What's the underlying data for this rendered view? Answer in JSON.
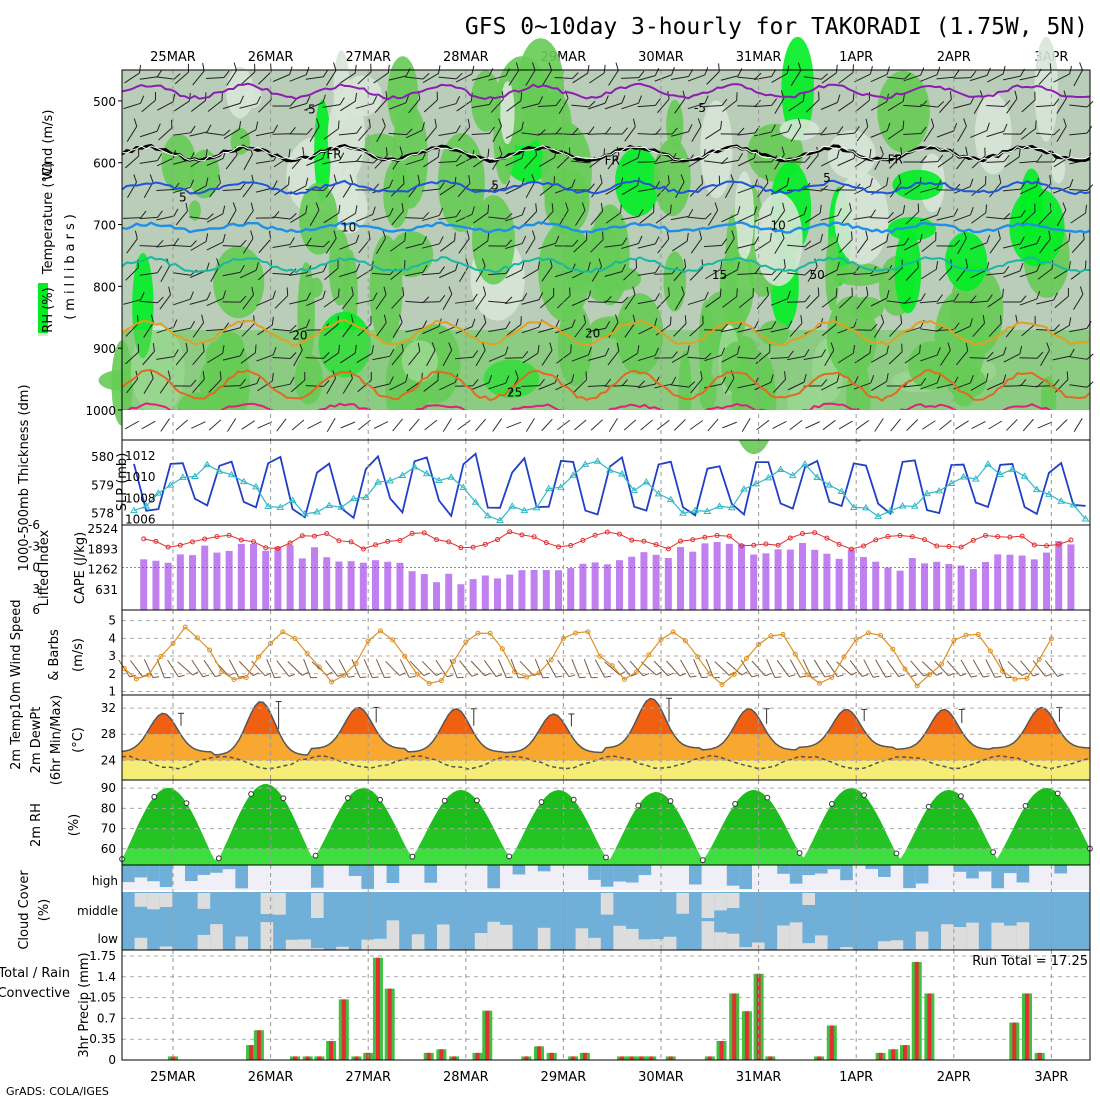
{
  "title": "GFS 0~10day 3-hourly for TAKORADI (1.75W, 5N)",
  "credit": "GrADS: COLA/IGES",
  "dates": [
    "25MAR",
    "26MAR",
    "27MAR",
    "28MAR",
    "29MAR",
    "30MAR",
    "31MAR",
    "1APR",
    "2APR",
    "3APR"
  ],
  "colors": {
    "rh_light": "#d8e6d8",
    "rh_mid": "#b9cdb9",
    "rh_green": "#66cc55",
    "rh_bright": "#00ee22",
    "t_purple": "#8a1fb0",
    "t_fr": "#000000",
    "t_blue5": "#1f55d8",
    "t_blue10": "#1e8fe8",
    "t_teal15": "#18b8a0",
    "t_orange20": "#e0a020",
    "t_orange25": "#e06a20",
    "t_magenta": "#e0207a",
    "slp": "#1f3fc8",
    "thick": "#30b8c8",
    "li": "#e03030",
    "cape": "#c080f0",
    "wind": "#e09020",
    "barb": "#7a5a40",
    "temp_hot": "#f06010",
    "temp_warm": "#f8a830",
    "temp_dew": "#f4f480",
    "rh_dark": "#00a000",
    "rh_base": "#40dd40",
    "cloud": "#70b0d8",
    "cloud_bg": "#f0eef6",
    "cloud_gap": "#dddddd",
    "precip_total": "#40c040",
    "precip_conv": "#e03030"
  },
  "panels": {
    "upper": {
      "ylabel_wind": "Wind (m/s)",
      "ylabel_temp": "Temperature (°C)",
      "ylabel_rh": "RH (%)",
      "ylabel_unit": "(millibars)"
    },
    "slp": {
      "ylabel_thick": "1000-500mb Thickness (dm)",
      "ylabel_slp": "SLP (mb)"
    },
    "cape": {
      "ylabel_li": "Lifted Index",
      "ylabel_cape": "CAPE (J/kg)"
    },
    "wind10": {
      "ylabel_speed": "10m Wind Speed",
      "ylabel_barbs": "& Barbs",
      "ylabel_unit": "(m/s)"
    },
    "temp": {
      "ylabel_a": "2m Temp",
      "ylabel_b": "2m DewPt",
      "ylabel_c": "(6hr Min/Max)",
      "ylabel_unit": "(°C)"
    },
    "rh2m": {
      "ylabel": "2m RH",
      "ylabel_unit": "(%)"
    },
    "cloud": {
      "ylabel": "Cloud Cover",
      "ylabel_unit": "(%)",
      "levels": [
        "high",
        "middle",
        "low"
      ]
    },
    "precip": {
      "ylabel_a": "Total / Rain",
      "ylabel_b": "Convective",
      "ylabel_unit": "3hr Precip (mm)",
      "run_total": "Run Total = 17.25"
    }
  },
  "chart_data": [
    {
      "type": "heatmap",
      "name": "upper-air",
      "y_ticks": [
        500,
        600,
        700,
        800,
        900,
        1000
      ],
      "ylim": [
        1000,
        450
      ],
      "contour_labels": [
        {
          "text": "-5",
          "x_day": 1.4,
          "p": 512
        },
        {
          "text": "-5",
          "x_day": 5.4,
          "p": 510
        },
        {
          "text": "FR",
          "x_day": 1.65,
          "p": 585
        },
        {
          "text": "FR",
          "x_day": 4.5,
          "p": 595
        },
        {
          "text": "FR",
          "x_day": 7.4,
          "p": 593
        },
        {
          "text": "5",
          "x_day": 0.1,
          "p": 655
        },
        {
          "text": "5",
          "x_day": 3.3,
          "p": 635
        },
        {
          "text": "5",
          "x_day": 6.7,
          "p": 623
        },
        {
          "text": "10",
          "x_day": 1.8,
          "p": 703
        },
        {
          "text": "10",
          "x_day": 6.2,
          "p": 700
        },
        {
          "text": "15",
          "x_day": 5.6,
          "p": 780
        },
        {
          "text": "50",
          "x_day": 6.6,
          "p": 780
        },
        {
          "text": "20",
          "x_day": 1.3,
          "p": 878
        },
        {
          "text": "20",
          "x_day": 4.3,
          "p": 875
        },
        {
          "text": "25",
          "x_day": 3.5,
          "p": 970
        }
      ]
    },
    {
      "type": "line",
      "name": "slp-thickness",
      "slp_ticks": [
        1006,
        1008,
        1010,
        1012
      ],
      "thick_ticks": [
        578,
        579,
        580
      ],
      "slp_ylim": [
        1005.5,
        1013.5
      ],
      "thick_ylim": [
        577.6,
        580.6
      ],
      "slp_amp": 3.0,
      "slp_mean": 1009.2,
      "thick_mean": 578.8
    },
    {
      "type": "bar",
      "name": "cape-li",
      "cape_ticks": [
        631,
        1262,
        1893,
        2524
      ],
      "li_ticks": [
        6,
        3,
        0,
        -3,
        -6
      ],
      "cape_ylim": [
        0,
        2524
      ],
      "li_ylim": [
        6,
        -6
      ]
    },
    {
      "type": "line",
      "name": "wind10m",
      "y_ticks": [
        1,
        2,
        3,
        4,
        5
      ],
      "ylim": [
        0.8,
        5.6
      ]
    },
    {
      "type": "area",
      "name": "temp2m",
      "y_ticks": [
        24,
        28,
        32
      ],
      "ylim": [
        21,
        34
      ],
      "max_temps": [
        31.2,
        33.0,
        32.1,
        31.9,
        31.1,
        33.5,
        31.9,
        31.8,
        31.8,
        32.1
      ],
      "min_temps": [
        25.3,
        24.8,
        25.8,
        25.3,
        25.2,
        25.9,
        25.6,
        26.0,
        25.7,
        25.9
      ],
      "dew": 23.7
    },
    {
      "type": "area",
      "name": "rh2m",
      "y_ticks": [
        60,
        70,
        80,
        90
      ],
      "ylim": [
        52,
        94
      ],
      "max_rh": [
        90,
        92,
        90,
        89,
        89,
        88,
        89,
        90,
        89,
        90
      ],
      "min_rh": [
        53,
        54,
        56,
        56,
        55,
        53,
        56,
        55,
        55,
        56
      ]
    },
    {
      "type": "bar",
      "name": "cloud-cover",
      "rows": [
        "high",
        "middle",
        "low"
      ]
    },
    {
      "type": "bar",
      "name": "precip3hr",
      "y_ticks": [
        0,
        0.35,
        0.7,
        1.05,
        1.4,
        1.75
      ],
      "y_tick_labels": [
        "0",
        "0.35",
        "0.7",
        "1.05",
        "1.4",
        "1.75"
      ],
      "ylim": [
        0,
        1.75
      ],
      "bars": [
        {
          "d": 0.0,
          "t": 0.06,
          "c": 0.06
        },
        {
          "d": 0.8,
          "t": 0.25,
          "c": 0.25
        },
        {
          "d": 0.88,
          "t": 0.5,
          "c": 0.5
        },
        {
          "d": 1.25,
          "t": 0.06,
          "c": 0.06
        },
        {
          "d": 1.38,
          "t": 0.06,
          "c": 0.06
        },
        {
          "d": 1.5,
          "t": 0.06,
          "c": 0.06
        },
        {
          "d": 1.62,
          "t": 0.32,
          "c": 0.32
        },
        {
          "d": 1.75,
          "t": 1.02,
          "c": 1.02
        },
        {
          "d": 1.88,
          "t": 0.06,
          "c": 0.06
        },
        {
          "d": 2.0,
          "t": 0.12,
          "c": 0.12
        },
        {
          "d": 2.1,
          "t": 1.72,
          "c": 1.72
        },
        {
          "d": 2.22,
          "t": 1.2,
          "c": 1.2
        },
        {
          "d": 2.62,
          "t": 0.12,
          "c": 0.12
        },
        {
          "d": 2.75,
          "t": 0.18,
          "c": 0.18
        },
        {
          "d": 2.88,
          "t": 0.06,
          "c": 0.06
        },
        {
          "d": 3.12,
          "t": 0.12,
          "c": 0.12
        },
        {
          "d": 3.22,
          "t": 0.83,
          "c": 0.83
        },
        {
          "d": 3.62,
          "t": 0.06,
          "c": 0.06
        },
        {
          "d": 3.75,
          "t": 0.23,
          "c": 0.23
        },
        {
          "d": 3.88,
          "t": 0.12,
          "c": 0.12
        },
        {
          "d": 4.1,
          "t": 0.06,
          "c": 0.06
        },
        {
          "d": 4.22,
          "t": 0.12,
          "c": 0.12
        },
        {
          "d": 4.6,
          "t": 0.06,
          "c": 0.06
        },
        {
          "d": 4.7,
          "t": 0.06,
          "c": 0.06
        },
        {
          "d": 4.8,
          "t": 0.06,
          "c": 0.06
        },
        {
          "d": 4.9,
          "t": 0.06,
          "c": 0.06
        },
        {
          "d": 5.1,
          "t": 0.06,
          "c": 0.06
        },
        {
          "d": 5.5,
          "t": 0.06,
          "c": 0.06
        },
        {
          "d": 5.62,
          "t": 0.32,
          "c": 0.32
        },
        {
          "d": 5.75,
          "t": 1.12,
          "c": 1.12
        },
        {
          "d": 5.88,
          "t": 0.82,
          "c": 0.82
        },
        {
          "d": 6.0,
          "t": 1.45,
          "c": 1.45
        },
        {
          "d": 6.12,
          "t": 0.06,
          "c": 0.06
        },
        {
          "d": 6.62,
          "t": 0.06,
          "c": 0.06
        },
        {
          "d": 6.75,
          "t": 0.58,
          "c": 0.58
        },
        {
          "d": 7.25,
          "t": 0.12,
          "c": 0.12
        },
        {
          "d": 7.38,
          "t": 0.18,
          "c": 0.18
        },
        {
          "d": 7.5,
          "t": 0.25,
          "c": 0.25
        },
        {
          "d": 7.62,
          "t": 1.65,
          "c": 1.65
        },
        {
          "d": 7.75,
          "t": 1.12,
          "c": 1.12
        },
        {
          "d": 8.62,
          "t": 0.63,
          "c": 0.63
        },
        {
          "d": 8.75,
          "t": 1.12,
          "c": 1.12
        },
        {
          "d": 8.88,
          "t": 0.12,
          "c": 0.12
        }
      ]
    }
  ]
}
